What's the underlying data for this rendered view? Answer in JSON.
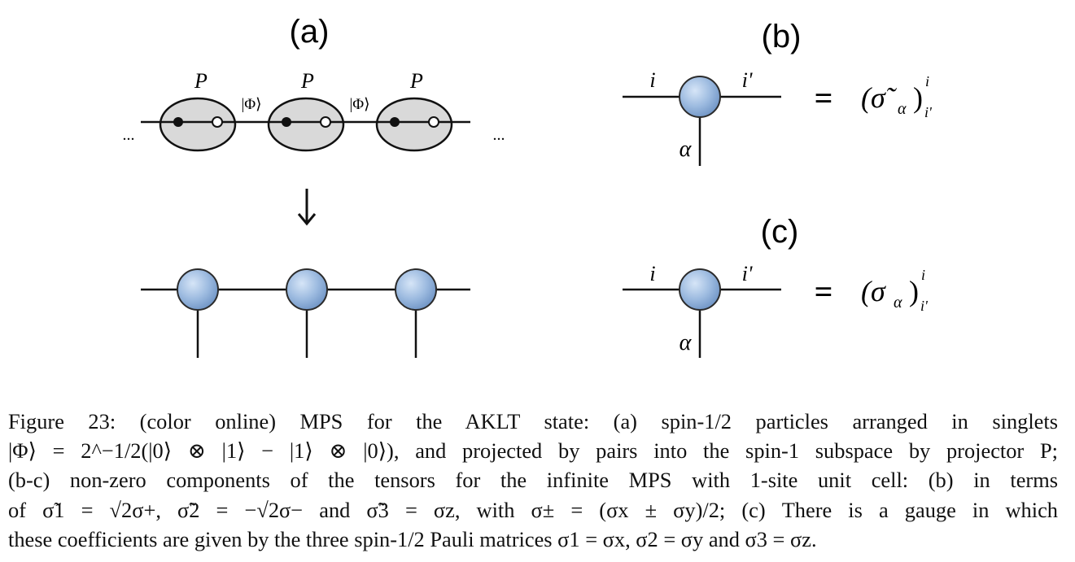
{
  "figure": {
    "panels": {
      "a": {
        "label": "(a)",
        "projector_label": "P",
        "bond_label": "|Φ⟩",
        "ellipsis": "..."
      },
      "b": {
        "label": "(b)",
        "index_left": "i",
        "index_right": "i'",
        "index_bottom": "α",
        "equals": "=",
        "rhs": "(σ̃",
        "rhs_sub": "α",
        "rhs_close": ")",
        "rhs_sup": "i",
        "rhs_subidx": "i'"
      },
      "c": {
        "label": "(c)",
        "index_left": "i",
        "index_right": "i'",
        "index_bottom": "α",
        "equals": "=",
        "rhs": "(σ",
        "rhs_sub": "α",
        "rhs_close": ")",
        "rhs_sup": "i",
        "rhs_subidx": "i'"
      }
    },
    "colors": {
      "tensor_fill": "#9dbbe0",
      "tensor_stroke": "#2b2b2b",
      "ellipse_fill": "#d9d9d9",
      "line": "#111111"
    }
  },
  "caption": {
    "lines": [
      "Figure 23: (color online) MPS for the AKLT state: (a) spin-1/2 particles arranged in singlets",
      "|Φ⟩ = 2^−1/2(|0⟩ ⊗ |1⟩ − |1⟩ ⊗ |0⟩), and projected by pairs into the spin-1 subspace by projector P;",
      "(b-c) non-zero components of the tensors for the infinite MPS with 1-site unit cell: (b) in terms",
      "of σ̃1 = √2σ+, σ̃2 = −√2σ− and σ̃3 = σz, with σ± = (σx ± σy)/2; (c) There is a gauge in which",
      "these coefficients are given by the three spin-1/2 Pauli matrices σ1 = σx, σ2 = σy and σ3 = σz."
    ]
  }
}
